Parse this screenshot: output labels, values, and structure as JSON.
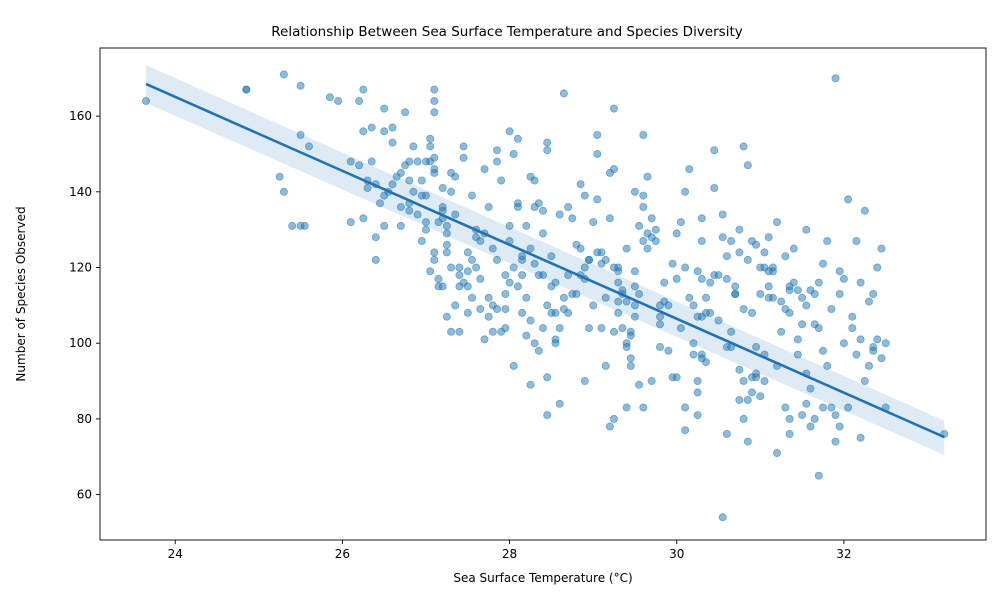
{
  "chart_data": {
    "type": "scatter",
    "title": "Relationship Between Sea Surface Temperature and Species Diversity",
    "xlabel": "Sea Surface Temperature (°C)",
    "ylabel": "Number of Species Observed",
    "xlim": [
      23.1,
      33.7
    ],
    "ylim": [
      48,
      178
    ],
    "xticks": [
      24,
      26,
      28,
      30,
      32
    ],
    "yticks": [
      60,
      80,
      100,
      120,
      140,
      160
    ],
    "grid": false,
    "colors": {
      "points": "#1f77b4",
      "line": "#2172b4"
    },
    "regression": {
      "x": [
        23.65,
        33.2
      ],
      "y": [
        168.5,
        75.2
      ],
      "ci_upper": [
        173.5,
        79.5
      ],
      "ci_lower": [
        163.5,
        70.5
      ]
    },
    "points": [
      [
        23.65,
        164
      ],
      [
        24.85,
        167
      ],
      [
        24.85,
        167
      ],
      [
        25.25,
        144
      ],
      [
        25.3,
        171
      ],
      [
        25.3,
        140
      ],
      [
        25.4,
        131
      ],
      [
        25.5,
        155
      ],
      [
        25.5,
        168
      ],
      [
        25.5,
        131
      ],
      [
        25.55,
        131
      ],
      [
        25.6,
        152
      ],
      [
        25.85,
        165
      ],
      [
        25.95,
        164
      ],
      [
        26.1,
        148
      ],
      [
        26.1,
        132
      ],
      [
        26.2,
        164
      ],
      [
        26.2,
        147
      ],
      [
        26.25,
        156
      ],
      [
        26.25,
        167
      ],
      [
        26.25,
        133
      ],
      [
        26.3,
        143
      ],
      [
        26.3,
        141
      ],
      [
        26.35,
        157
      ],
      [
        26.35,
        148
      ],
      [
        26.4,
        142
      ],
      [
        26.4,
        128
      ],
      [
        26.4,
        122
      ],
      [
        26.45,
        137
      ],
      [
        26.5,
        131
      ],
      [
        26.5,
        139
      ],
      [
        26.5,
        156
      ],
      [
        26.5,
        162
      ],
      [
        26.55,
        140
      ],
      [
        26.6,
        142
      ],
      [
        26.6,
        153
      ],
      [
        26.6,
        157
      ],
      [
        26.65,
        144
      ],
      [
        26.7,
        145
      ],
      [
        26.7,
        131
      ],
      [
        26.75,
        161
      ],
      [
        26.8,
        137
      ],
      [
        26.8,
        135
      ],
      [
        26.8,
        148
      ],
      [
        26.85,
        152
      ],
      [
        26.9,
        148
      ],
      [
        26.95,
        143
      ],
      [
        26.95,
        139
      ],
      [
        27.0,
        139
      ],
      [
        27.0,
        148
      ],
      [
        27.0,
        132
      ],
      [
        27.05,
        154
      ],
      [
        27.05,
        152
      ],
      [
        27.05,
        148
      ],
      [
        27.1,
        145
      ],
      [
        27.1,
        146
      ],
      [
        27.1,
        149
      ],
      [
        27.1,
        167
      ],
      [
        27.1,
        164
      ],
      [
        27.1,
        161
      ],
      [
        27.1,
        122
      ],
      [
        27.15,
        132
      ],
      [
        27.15,
        117
      ],
      [
        27.2,
        141
      ],
      [
        27.2,
        136
      ],
      [
        27.2,
        135
      ],
      [
        27.2,
        133
      ],
      [
        27.25,
        131
      ],
      [
        27.25,
        126
      ],
      [
        27.25,
        129
      ],
      [
        27.25,
        124
      ],
      [
        27.3,
        120
      ],
      [
        27.3,
        145
      ],
      [
        27.3,
        140
      ],
      [
        27.35,
        144
      ],
      [
        27.35,
        134
      ],
      [
        27.4,
        120
      ],
      [
        27.4,
        115
      ],
      [
        27.4,
        118
      ],
      [
        27.45,
        149
      ],
      [
        27.45,
        152
      ],
      [
        27.5,
        119
      ],
      [
        27.5,
        124
      ],
      [
        27.5,
        115
      ],
      [
        27.55,
        122
      ],
      [
        27.55,
        139
      ],
      [
        27.6,
        120
      ],
      [
        27.6,
        128
      ],
      [
        27.6,
        130
      ],
      [
        27.65,
        117
      ],
      [
        27.65,
        127
      ],
      [
        27.7,
        129
      ],
      [
        27.7,
        146
      ],
      [
        27.75,
        107
      ],
      [
        27.75,
        136
      ],
      [
        27.8,
        103
      ],
      [
        27.8,
        110
      ],
      [
        27.8,
        125
      ],
      [
        27.85,
        122
      ],
      [
        27.85,
        151
      ],
      [
        27.85,
        148
      ],
      [
        27.9,
        143
      ],
      [
        27.9,
        103
      ],
      [
        27.95,
        109
      ],
      [
        27.95,
        113
      ],
      [
        27.95,
        118
      ],
      [
        28.0,
        127
      ],
      [
        28.0,
        156
      ],
      [
        28.0,
        131
      ],
      [
        28.05,
        150
      ],
      [
        28.1,
        136
      ],
      [
        28.1,
        154
      ],
      [
        28.1,
        137
      ],
      [
        28.15,
        122
      ],
      [
        28.15,
        123
      ],
      [
        28.15,
        118
      ],
      [
        28.2,
        131
      ],
      [
        28.2,
        112
      ],
      [
        28.25,
        106
      ],
      [
        28.25,
        125
      ],
      [
        28.25,
        144
      ],
      [
        28.3,
        143
      ],
      [
        28.3,
        121
      ],
      [
        28.3,
        136
      ],
      [
        28.35,
        137
      ],
      [
        28.35,
        118
      ],
      [
        28.4,
        135
      ],
      [
        28.4,
        118
      ],
      [
        28.4,
        129
      ],
      [
        28.45,
        151
      ],
      [
        28.45,
        153
      ],
      [
        28.5,
        115
      ],
      [
        28.5,
        123
      ],
      [
        28.5,
        108
      ],
      [
        28.55,
        116
      ],
      [
        28.55,
        101
      ],
      [
        28.6,
        84
      ],
      [
        28.6,
        134
      ],
      [
        28.65,
        166
      ],
      [
        28.65,
        109
      ],
      [
        28.7,
        136
      ],
      [
        28.7,
        108
      ],
      [
        28.75,
        133
      ],
      [
        28.8,
        113
      ],
      [
        28.8,
        126
      ],
      [
        28.85,
        142
      ],
      [
        28.85,
        125
      ],
      [
        28.9,
        120
      ],
      [
        28.9,
        139
      ],
      [
        28.9,
        117
      ],
      [
        28.95,
        122
      ],
      [
        28.95,
        104
      ],
      [
        29.0,
        110
      ],
      [
        29.0,
        132
      ],
      [
        29.05,
        155
      ],
      [
        29.05,
        138
      ],
      [
        29.05,
        150
      ],
      [
        29.1,
        121
      ],
      [
        29.1,
        124
      ],
      [
        29.1,
        104
      ],
      [
        29.15,
        94
      ],
      [
        29.15,
        112
      ],
      [
        29.2,
        145
      ],
      [
        29.2,
        133
      ],
      [
        29.25,
        146
      ],
      [
        29.25,
        162
      ],
      [
        29.3,
        119
      ],
      [
        29.3,
        116
      ],
      [
        29.3,
        108
      ],
      [
        29.3,
        120
      ],
      [
        29.35,
        113
      ],
      [
        29.35,
        114
      ],
      [
        29.4,
        125
      ],
      [
        29.4,
        111
      ],
      [
        29.4,
        100
      ],
      [
        29.45,
        103
      ],
      [
        29.45,
        102
      ],
      [
        29.5,
        119
      ],
      [
        29.5,
        140
      ],
      [
        29.5,
        107
      ],
      [
        29.55,
        89
      ],
      [
        29.55,
        131
      ],
      [
        29.6,
        155
      ],
      [
        29.6,
        136
      ],
      [
        29.6,
        139
      ],
      [
        29.65,
        144
      ],
      [
        29.65,
        129
      ],
      [
        29.7,
        133
      ],
      [
        29.7,
        128
      ],
      [
        29.75,
        130
      ],
      [
        29.8,
        99
      ],
      [
        29.8,
        105
      ],
      [
        29.85,
        111
      ],
      [
        29.85,
        116
      ],
      [
        29.9,
        110
      ],
      [
        29.9,
        98
      ],
      [
        29.95,
        121
      ],
      [
        30.0,
        91
      ],
      [
        30.0,
        129
      ],
      [
        30.0,
        117
      ],
      [
        30.05,
        104
      ],
      [
        30.05,
        132
      ],
      [
        30.1,
        140
      ],
      [
        30.1,
        120
      ],
      [
        30.15,
        112
      ],
      [
        30.15,
        146
      ],
      [
        30.2,
        100
      ],
      [
        30.2,
        110
      ],
      [
        30.25,
        81
      ],
      [
        30.25,
        119
      ],
      [
        30.3,
        133
      ],
      [
        30.3,
        127
      ],
      [
        30.35,
        108
      ],
      [
        30.35,
        112
      ],
      [
        30.4,
        116
      ],
      [
        30.4,
        108
      ],
      [
        30.45,
        151
      ],
      [
        30.45,
        141
      ],
      [
        30.5,
        118
      ],
      [
        30.5,
        106
      ],
      [
        30.55,
        134
      ],
      [
        30.55,
        128
      ],
      [
        30.6,
        117
      ],
      [
        30.6,
        123
      ],
      [
        30.65,
        127
      ],
      [
        30.65,
        103
      ],
      [
        30.7,
        113
      ],
      [
        30.7,
        115
      ],
      [
        30.75,
        130
      ],
      [
        30.75,
        124
      ],
      [
        30.8,
        109
      ],
      [
        30.8,
        152
      ],
      [
        30.85,
        147
      ],
      [
        30.85,
        122
      ],
      [
        30.9,
        127
      ],
      [
        30.9,
        108
      ],
      [
        30.95,
        99
      ],
      [
        30.95,
        126
      ],
      [
        31.0,
        113
      ],
      [
        31.0,
        120
      ],
      [
        31.05,
        90
      ],
      [
        31.05,
        124
      ],
      [
        31.1,
        128
      ],
      [
        31.1,
        115
      ],
      [
        31.15,
        112
      ],
      [
        31.15,
        119
      ],
      [
        31.2,
        94
      ],
      [
        31.2,
        132
      ],
      [
        31.25,
        111
      ],
      [
        31.25,
        103
      ],
      [
        31.3,
        123
      ],
      [
        31.3,
        109
      ],
      [
        31.35,
        108
      ],
      [
        31.35,
        114
      ],
      [
        31.4,
        125
      ],
      [
        31.4,
        116
      ],
      [
        31.45,
        97
      ],
      [
        31.45,
        101
      ],
      [
        31.5,
        105
      ],
      [
        31.5,
        112
      ],
      [
        31.55,
        110
      ],
      [
        31.55,
        130
      ],
      [
        31.6,
        78
      ],
      [
        31.6,
        88
      ],
      [
        31.65,
        80
      ],
      [
        31.65,
        113
      ],
      [
        31.7,
        104
      ],
      [
        31.7,
        116
      ],
      [
        31.75,
        83
      ],
      [
        31.75,
        121
      ],
      [
        31.8,
        94
      ],
      [
        31.8,
        127
      ],
      [
        31.85,
        83
      ],
      [
        31.85,
        109
      ],
      [
        31.9,
        74
      ],
      [
        31.9,
        170
      ],
      [
        31.95,
        113
      ],
      [
        31.95,
        119
      ],
      [
        32.0,
        100
      ],
      [
        32.0,
        117
      ],
      [
        32.05,
        83
      ],
      [
        32.05,
        138
      ],
      [
        32.1,
        104
      ],
      [
        32.1,
        107
      ],
      [
        32.15,
        97
      ],
      [
        32.15,
        127
      ],
      [
        32.2,
        101
      ],
      [
        32.2,
        116
      ],
      [
        32.25,
        90
      ],
      [
        32.25,
        135
      ],
      [
        32.3,
        94
      ],
      [
        32.3,
        111
      ],
      [
        32.35,
        113
      ],
      [
        32.35,
        99
      ],
      [
        32.4,
        120
      ],
      [
        32.4,
        101
      ],
      [
        32.45,
        96
      ],
      [
        32.45,
        125
      ],
      [
        32.5,
        100
      ],
      [
        32.5,
        83
      ],
      [
        29.6,
        83
      ],
      [
        29.25,
        80
      ],
      [
        29.2,
        78
      ],
      [
        28.45,
        81
      ],
      [
        28.25,
        89
      ],
      [
        28.05,
        94
      ],
      [
        28.45,
        91
      ],
      [
        28.9,
        90
      ],
      [
        29.25,
        103
      ],
      [
        29.7,
        90
      ],
      [
        29.95,
        91
      ],
      [
        30.1,
        83
      ],
      [
        30.1,
        77
      ],
      [
        30.25,
        87
      ],
      [
        30.25,
        90
      ],
      [
        30.35,
        95
      ],
      [
        30.3,
        96
      ],
      [
        30.3,
        97
      ],
      [
        30.6,
        76
      ],
      [
        30.55,
        54
      ],
      [
        30.6,
        99
      ],
      [
        30.65,
        99
      ],
      [
        30.7,
        113
      ],
      [
        30.75,
        85
      ],
      [
        30.75,
        93
      ],
      [
        30.8,
        90
      ],
      [
        30.8,
        80
      ],
      [
        30.85,
        74
      ],
      [
        30.85,
        85
      ],
      [
        30.9,
        87
      ],
      [
        30.9,
        91
      ],
      [
        30.95,
        92
      ],
      [
        30.95,
        91
      ],
      [
        31.0,
        86
      ],
      [
        31.05,
        97
      ],
      [
        31.1,
        112
      ],
      [
        31.1,
        119
      ],
      [
        31.15,
        120
      ],
      [
        31.2,
        71
      ],
      [
        31.3,
        83
      ],
      [
        31.35,
        80
      ],
      [
        31.35,
        76
      ],
      [
        31.35,
        115
      ],
      [
        31.45,
        114
      ],
      [
        31.5,
        81
      ],
      [
        31.55,
        84
      ],
      [
        31.55,
        92
      ],
      [
        31.6,
        114
      ],
      [
        31.65,
        105
      ],
      [
        31.7,
        65
      ],
      [
        31.75,
        98
      ],
      [
        31.9,
        81
      ],
      [
        31.95,
        78
      ],
      [
        32.2,
        75
      ],
      [
        32.35,
        98
      ],
      [
        33.2,
        76
      ],
      [
        31.05,
        120
      ],
      [
        30.45,
        118
      ],
      [
        30.3,
        117
      ],
      [
        30.25,
        107
      ],
      [
        30.3,
        107
      ],
      [
        30.2,
        97
      ],
      [
        29.8,
        110
      ],
      [
        29.8,
        107
      ],
      [
        29.75,
        127
      ],
      [
        29.65,
        125
      ],
      [
        29.6,
        127
      ],
      [
        29.5,
        115
      ],
      [
        29.5,
        110
      ],
      [
        29.55,
        113
      ],
      [
        29.45,
        94
      ],
      [
        29.4,
        83
      ],
      [
        29.45,
        96
      ],
      [
        29.4,
        99
      ],
      [
        29.35,
        104
      ],
      [
        29.3,
        111
      ],
      [
        29.25,
        120
      ],
      [
        29.15,
        122
      ],
      [
        29.05,
        124
      ],
      [
        28.95,
        122
      ],
      [
        28.85,
        118
      ],
      [
        28.75,
        113
      ],
      [
        28.7,
        118
      ],
      [
        28.65,
        112
      ],
      [
        28.6,
        104
      ],
      [
        28.55,
        100
      ],
      [
        28.55,
        108
      ],
      [
        28.45,
        110
      ],
      [
        28.4,
        104
      ],
      [
        28.35,
        98
      ],
      [
        28.3,
        100
      ],
      [
        28.2,
        102
      ],
      [
        28.15,
        108
      ],
      [
        28.1,
        115
      ],
      [
        28.05,
        120
      ],
      [
        28.0,
        116
      ],
      [
        27.95,
        104
      ],
      [
        27.85,
        109
      ],
      [
        27.75,
        112
      ],
      [
        27.7,
        101
      ],
      [
        27.65,
        109
      ],
      [
        27.55,
        112
      ],
      [
        27.5,
        108
      ],
      [
        27.45,
        116
      ],
      [
        27.4,
        103
      ],
      [
        27.35,
        110
      ],
      [
        27.3,
        103
      ],
      [
        27.25,
        107
      ],
      [
        27.2,
        115
      ],
      [
        27.15,
        115
      ],
      [
        27.1,
        124
      ],
      [
        27.05,
        119
      ],
      [
        27.0,
        130
      ],
      [
        26.95,
        127
      ],
      [
        26.9,
        134
      ],
      [
        26.85,
        140
      ],
      [
        26.8,
        143
      ],
      [
        26.75,
        147
      ],
      [
        26.7,
        136
      ]
    ]
  }
}
